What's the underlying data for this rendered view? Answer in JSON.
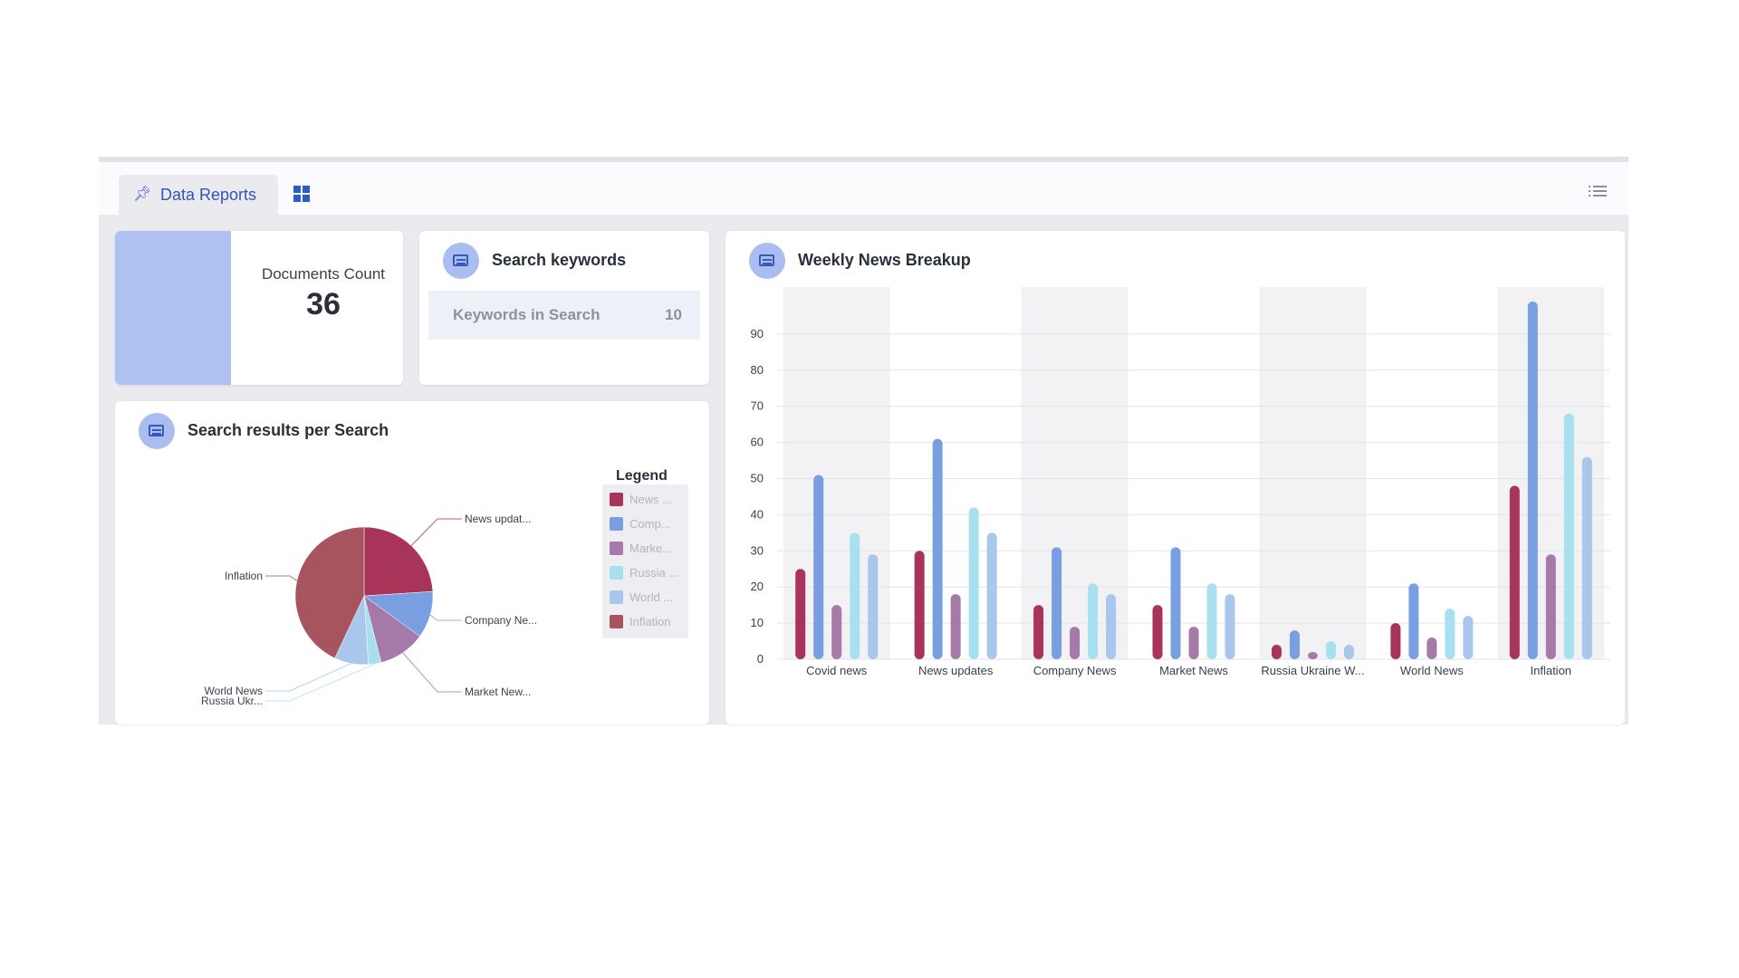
{
  "tabbar": {
    "active_tab_label": "Data Reports"
  },
  "cards": {
    "documents": {
      "label": "Documents Count",
      "value": "36"
    },
    "keywords": {
      "title": "Search keywords",
      "row_label": "Keywords in Search",
      "row_value": "10"
    },
    "pie": {
      "title": "Search results per Search",
      "legend_title": "Legend"
    },
    "bars": {
      "title": "Weekly News Breakup"
    }
  },
  "colors": {
    "news_updates": "#a8345a",
    "company": "#7a9fe0",
    "market": "#a57aa8",
    "russia": "#a9e0f0",
    "world": "#a9c6ec",
    "inflation": "#a8545e",
    "accent": "#2f56b8"
  },
  "chart_data": [
    {
      "type": "pie",
      "slices": [
        {
          "label": "News updat...",
          "legend": "News ...",
          "value": 24,
          "color": "#a8345a"
        },
        {
          "label": "Company Ne...",
          "legend": "Comp...",
          "value": 11,
          "color": "#7a9fe0"
        },
        {
          "label": "Market New...",
          "legend": "Marke...",
          "value": 11,
          "color": "#a57aa8"
        },
        {
          "label": "Russia Ukr...",
          "legend": "Russia ...",
          "value": 3,
          "color": "#a9e0f0"
        },
        {
          "label": "World News",
          "legend": "World ...",
          "value": 8,
          "color": "#a9c6ec"
        },
        {
          "label": "Inflation",
          "legend": "Inflation",
          "value": 43,
          "color": "#a8545e"
        }
      ],
      "legend_position": "right"
    },
    {
      "type": "bar",
      "categories": [
        "Covid news",
        "News updates",
        "Company News",
        "Market News",
        "Russia Ukraine W...",
        "World News",
        "Inflation"
      ],
      "series": [
        {
          "color": "#a8345a",
          "values": [
            25,
            30,
            15,
            15,
            4,
            10,
            48
          ]
        },
        {
          "color": "#7a9fe0",
          "values": [
            51,
            61,
            31,
            31,
            8,
            21,
            99
          ]
        },
        {
          "color": "#a57aa8",
          "values": [
            15,
            18,
            9,
            9,
            2,
            6,
            29
          ]
        },
        {
          "color": "#a9e0f0",
          "values": [
            35,
            42,
            21,
            21,
            5,
            14,
            68
          ]
        },
        {
          "color": "#a9c6ec",
          "values": [
            29,
            35,
            18,
            18,
            4,
            12,
            56
          ]
        }
      ],
      "yticks": [
        0,
        10,
        20,
        30,
        40,
        50,
        60,
        70,
        80,
        90
      ],
      "ylim": [
        0,
        99
      ],
      "grid": true
    }
  ]
}
